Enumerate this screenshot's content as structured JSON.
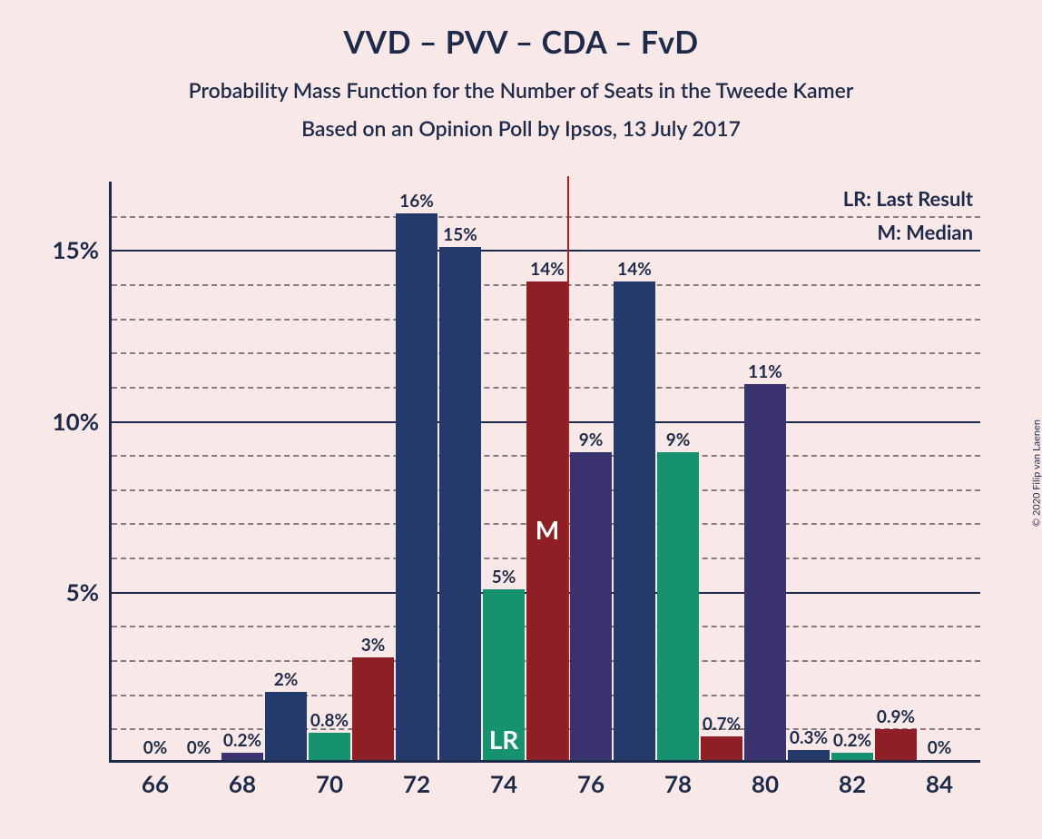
{
  "title": "VVD – PVV – CDA – FvD",
  "subtitle1": "Probability Mass Function for the Number of Seats in the Tweede Kamer",
  "subtitle2": "Based on an Opinion Poll by Ipsos, 13 July 2017",
  "legend": {
    "lr": "LR: Last Result",
    "m": "M: Median"
  },
  "copyright": "© 2020 Filip van Laenen",
  "chart": {
    "type": "bar",
    "xlim": [
      65,
      85
    ],
    "ylim": [
      0,
      17
    ],
    "xticks": [
      66,
      68,
      70,
      72,
      74,
      76,
      78,
      80,
      82,
      84
    ],
    "yticks_major": [
      5,
      10,
      15
    ],
    "yticks_minor": [
      1,
      2,
      3,
      4,
      6,
      7,
      8,
      9,
      11,
      12,
      13,
      14,
      16
    ],
    "background_color": "#f9e8e8",
    "axis_color": "#1e2a4a",
    "grid_major_color": "#1e2a4a",
    "grid_minor_color": "#8a7a80",
    "median_line_color": "#b01f1f",
    "median_x": 75,
    "bar_width_units": 0.95,
    "colors": {
      "blue": "#233a6b",
      "purple": "#3a3370",
      "green": "#16926f",
      "red": "#8e1f25"
    },
    "bars": [
      {
        "x": 66,
        "value": 0,
        "label": "0%",
        "color": "blue"
      },
      {
        "x": 67,
        "value": 0,
        "label": "0%",
        "color": "blue"
      },
      {
        "x": 68,
        "value": 0.2,
        "label": "0.2%",
        "color": "purple"
      },
      {
        "x": 69,
        "value": 2,
        "label": "2%",
        "color": "blue"
      },
      {
        "x": 70,
        "value": 0.8,
        "label": "0.8%",
        "color": "green"
      },
      {
        "x": 71,
        "value": 3,
        "label": "3%",
        "color": "red"
      },
      {
        "x": 72,
        "value": 16,
        "label": "16%",
        "color": "blue"
      },
      {
        "x": 73,
        "value": 15,
        "label": "15%",
        "color": "blue"
      },
      {
        "x": 74,
        "value": 5,
        "label": "5%",
        "color": "green",
        "marker": "LR"
      },
      {
        "x": 75,
        "value": 14,
        "label": "14%",
        "color": "red",
        "marker": "M"
      },
      {
        "x": 76,
        "value": 9,
        "label": "9%",
        "color": "purple"
      },
      {
        "x": 77,
        "value": 14,
        "label": "14%",
        "color": "blue"
      },
      {
        "x": 78,
        "value": 9,
        "label": "9%",
        "color": "green"
      },
      {
        "x": 79,
        "value": 0.7,
        "label": "0.7%",
        "color": "red"
      },
      {
        "x": 80,
        "value": 11,
        "label": "11%",
        "color": "purple"
      },
      {
        "x": 81,
        "value": 0.3,
        "label": "0.3%",
        "color": "blue"
      },
      {
        "x": 82,
        "value": 0.2,
        "label": "0.2%",
        "color": "green"
      },
      {
        "x": 83,
        "value": 0.9,
        "label": "0.9%",
        "color": "red"
      },
      {
        "x": 84,
        "value": 0,
        "label": "0%",
        "color": "blue"
      }
    ]
  }
}
